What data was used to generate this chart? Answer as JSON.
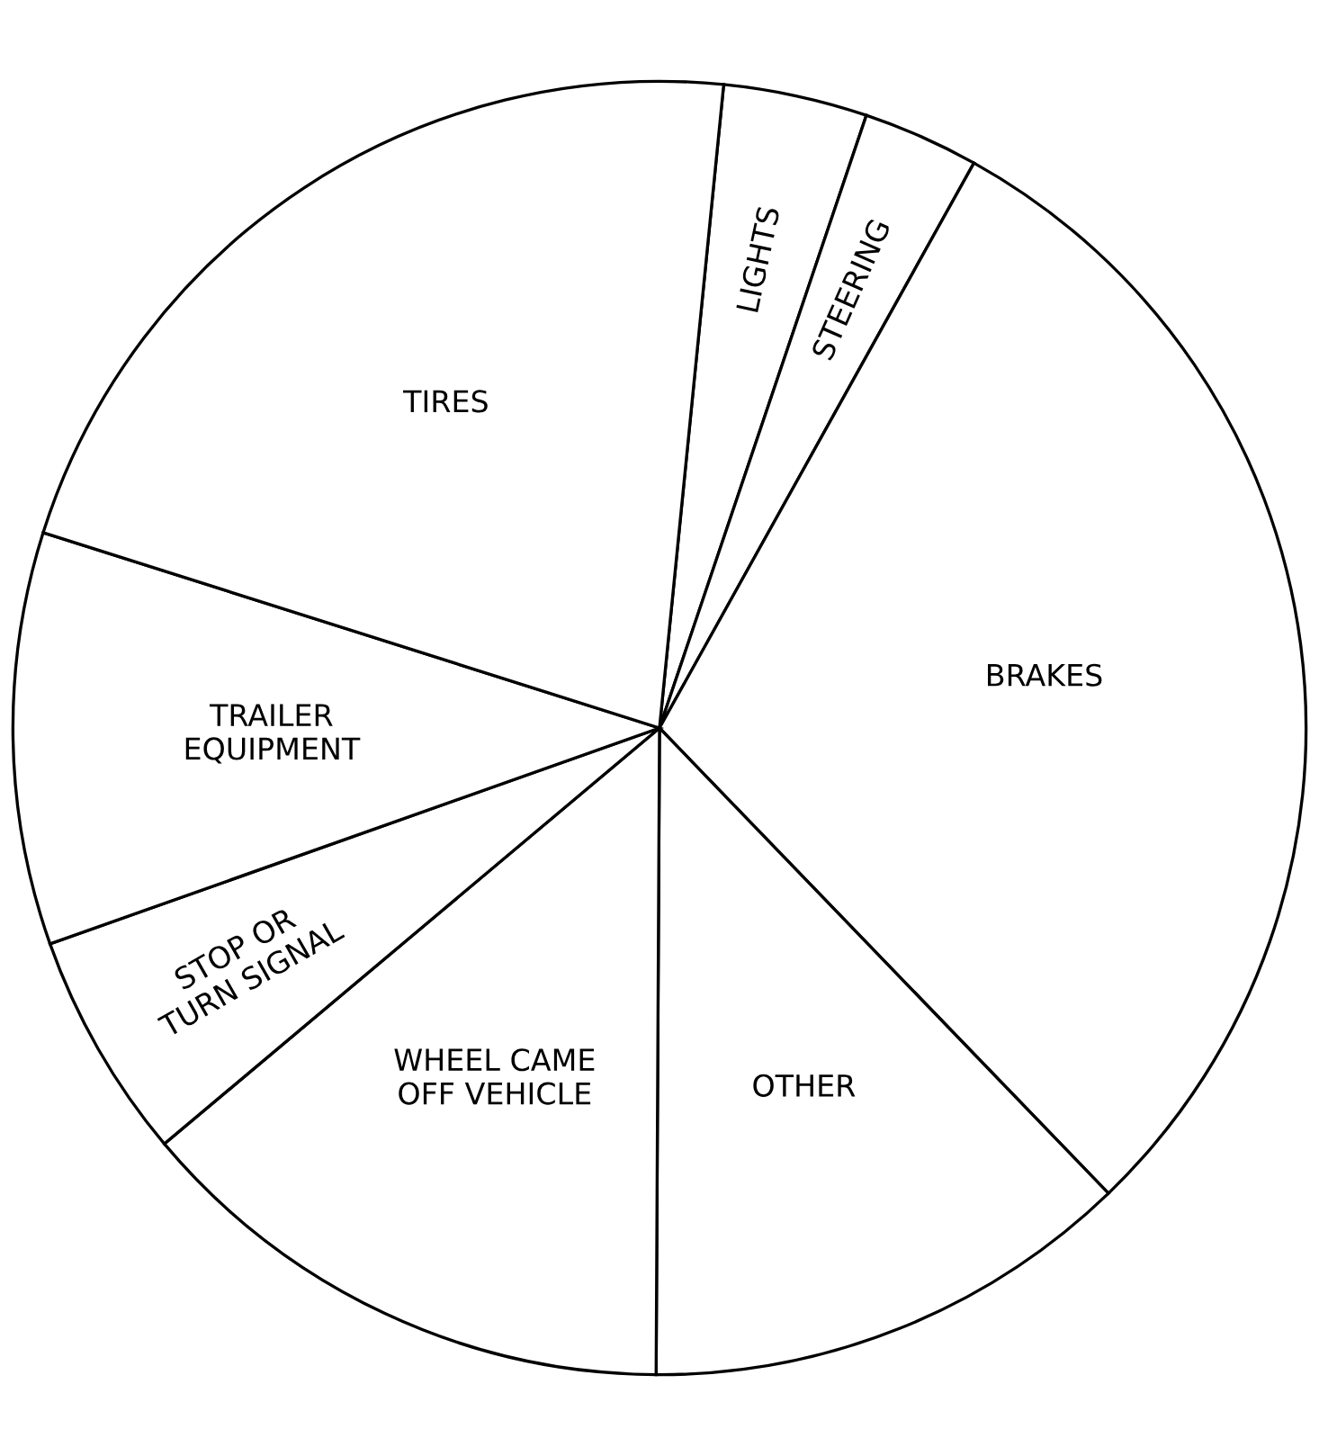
{
  "chart_data": {
    "type": "pie",
    "categories": [
      "LIGHTS",
      "STEERING",
      "BRAKES",
      "OTHER",
      "WHEEL CAME\nOFF VEHICLE",
      "STOP OR\nTURN SIGNAL",
      "TRAILER\nEQUIPMENT",
      "TIRES"
    ],
    "values": [
      3.6,
      2.9,
      29.7,
      12.3,
      13.8,
      5.7,
      10.3,
      21.7
    ],
    "colors": [
      "#ffffff",
      "#ffffff",
      "#ffffff",
      "#ffffff",
      "#ffffff",
      "#ffffff",
      "#ffffff",
      "#ffffff"
    ]
  }
}
